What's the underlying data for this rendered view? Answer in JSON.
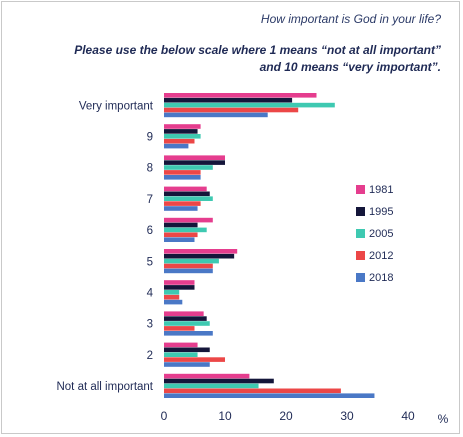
{
  "header": {
    "title": "How important is God in your life?",
    "subtitle_line1": "Please use the below scale where 1 means “not at all important”",
    "subtitle_line2": "and 10 means “very important”."
  },
  "chart_data": {
    "type": "bar",
    "orientation": "horizontal",
    "categories": [
      "Very important",
      "9",
      "8",
      "7",
      "6",
      "5",
      "4",
      "3",
      "2",
      "Not at all important"
    ],
    "series": [
      {
        "name": "1981",
        "color": "#e53d8e",
        "values": [
          25,
          6,
          10,
          7,
          8,
          12,
          5,
          6.5,
          5.5,
          14
        ]
      },
      {
        "name": "1995",
        "color": "#14163a",
        "values": [
          21,
          5.5,
          10,
          7.5,
          5.5,
          11.5,
          5,
          7,
          7.5,
          18
        ]
      },
      {
        "name": "2005",
        "color": "#3ec9b1",
        "values": [
          28,
          6,
          8,
          8,
          7,
          9,
          2.5,
          7.5,
          5.5,
          15.5
        ]
      },
      {
        "name": "2012",
        "color": "#ec4747",
        "values": [
          22,
          5,
          6,
          6,
          5.5,
          8,
          2.5,
          5,
          10,
          29
        ]
      },
      {
        "name": "2018",
        "color": "#4a78c6",
        "values": [
          17,
          4,
          6,
          5.5,
          5,
          8,
          3,
          8,
          7.5,
          34.5
        ]
      }
    ],
    "x_ticks": [
      "0",
      "10",
      "20",
      "30",
      "40"
    ],
    "x_unit": "%",
    "xlim": [
      0,
      40
    ],
    "grid": false,
    "legend_position": "right"
  }
}
